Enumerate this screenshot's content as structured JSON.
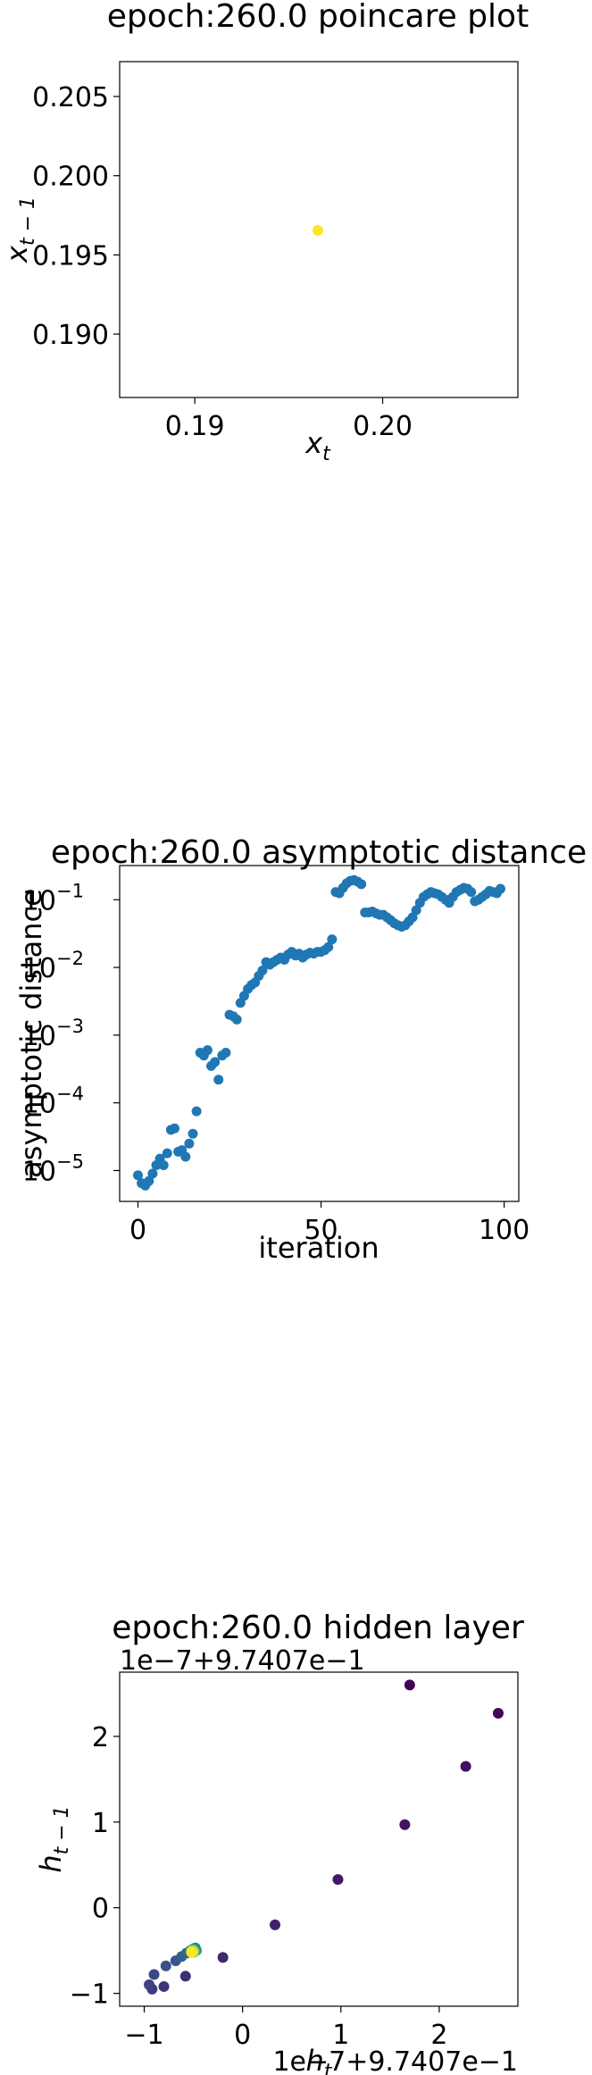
{
  "chart_data": [
    {
      "type": "scatter",
      "title": "epoch:260.0 poincare plot",
      "xlabel": "x",
      "xlabel_sub": "t",
      "ylabel": "x",
      "ylabel_sub": "t − 1",
      "xlim": [
        0.186,
        0.2072
      ],
      "ylim": [
        0.186,
        0.2072
      ],
      "xticks": [
        0.19,
        0.2
      ],
      "xtick_labels": [
        "0.19",
        "0.20"
      ],
      "yticks": [
        0.19,
        0.195,
        0.2,
        0.205
      ],
      "ytick_labels": [
        "0.190",
        "0.195",
        "0.200",
        "0.205"
      ],
      "grid": false,
      "marker_color": "#fde725",
      "points": [
        {
          "x": 0.19655,
          "y": 0.19655
        }
      ]
    },
    {
      "type": "scatter",
      "title": "epoch:260.0 asymptotic distance",
      "xlabel": "iteration",
      "ylabel": "asymptotic distance",
      "yscale": "log",
      "xlim": [
        -5,
        104
      ],
      "ylim": [
        3.5e-06,
        0.32
      ],
      "xticks": [
        0,
        50,
        100
      ],
      "xtick_labels": [
        "0",
        "50",
        "100"
      ],
      "yticks": [
        1e-05,
        0.0001,
        0.001,
        0.01,
        0.1
      ],
      "ytick_labels": [
        "10",
        "10",
        "10",
        "10",
        "10"
      ],
      "ytick_exponents": [
        "−5",
        "−4",
        "−3",
        "−2",
        "−1"
      ],
      "grid": false,
      "marker_color": "#1f77b4",
      "x": [
        0,
        1,
        2,
        3,
        4,
        5,
        6,
        7,
        8,
        9,
        10,
        11,
        12,
        13,
        14,
        15,
        16,
        17,
        18,
        19,
        20,
        21,
        22,
        23,
        24,
        25,
        26,
        27,
        28,
        29,
        30,
        31,
        32,
        33,
        34,
        35,
        36,
        37,
        38,
        39,
        40,
        41,
        42,
        43,
        44,
        45,
        46,
        47,
        48,
        49,
        50,
        51,
        52,
        53,
        54,
        55,
        56,
        57,
        58,
        59,
        60,
        61,
        62,
        63,
        64,
        65,
        66,
        67,
        68,
        69,
        70,
        71,
        72,
        73,
        74,
        75,
        76,
        77,
        78,
        79,
        80,
        81,
        82,
        83,
        84,
        85,
        86,
        87,
        88,
        89,
        90,
        91,
        92,
        93,
        94,
        95,
        96,
        97,
        98,
        99
      ],
      "y": [
        8.5e-06,
        6.5e-06,
        6e-06,
        7e-06,
        9e-06,
        1.2e-05,
        1.5e-05,
        1.2e-05,
        1.8e-05,
        4e-05,
        4.2e-05,
        1.9e-05,
        2e-05,
        1.6e-05,
        2.5e-05,
        3.5e-05,
        7.5e-05,
        0.00055,
        0.0005,
        0.0006,
        0.00035,
        0.0004,
        0.00022,
        0.0005,
        0.00055,
        0.002,
        0.0019,
        0.0017,
        0.003,
        0.0038,
        0.0048,
        0.0055,
        0.006,
        0.0075,
        0.009,
        0.012,
        0.011,
        0.012,
        0.013,
        0.014,
        0.013,
        0.0155,
        0.017,
        0.015,
        0.016,
        0.014,
        0.0155,
        0.0165,
        0.016,
        0.017,
        0.017,
        0.018,
        0.02,
        0.026,
        0.13,
        0.125,
        0.15,
        0.175,
        0.19,
        0.195,
        0.185,
        0.17,
        0.065,
        0.065,
        0.067,
        0.063,
        0.06,
        0.06,
        0.055,
        0.05,
        0.045,
        0.042,
        0.04,
        0.042,
        0.048,
        0.055,
        0.07,
        0.09,
        0.11,
        0.12,
        0.13,
        0.125,
        0.12,
        0.11,
        0.1,
        0.09,
        0.11,
        0.13,
        0.14,
        0.15,
        0.145,
        0.13,
        0.095,
        0.1,
        0.11,
        0.12,
        0.135,
        0.13,
        0.125,
        0.145
      ]
    },
    {
      "type": "scatter",
      "title": "epoch:260.0 hidden layer",
      "xlabel": "h",
      "xlabel_sub": "t",
      "ylabel": "h",
      "ylabel_sub": "t − 1",
      "x_offset_label": "1e−7+9.7407e−1",
      "y_offset_label": "1e−7+9.7407e−1",
      "xlim": [
        -1.25,
        2.8
      ],
      "ylim": [
        -1.15,
        2.75
      ],
      "xticks": [
        -1,
        0,
        1,
        2
      ],
      "xtick_labels": [
        "−1",
        "0",
        "1",
        "2"
      ],
      "yticks": [
        -1,
        0,
        1,
        2
      ],
      "ytick_labels": [
        "−1",
        "0",
        "1",
        "2"
      ],
      "grid": false,
      "colormap": "viridis",
      "points": [
        {
          "x": 1.7,
          "y": 2.6,
          "c": 0.0
        },
        {
          "x": 2.6,
          "y": 2.27,
          "c": 0.02
        },
        {
          "x": 2.27,
          "y": 1.65,
          "c": 0.04
        },
        {
          "x": 1.65,
          "y": 0.97,
          "c": 0.06
        },
        {
          "x": 0.97,
          "y": 0.33,
          "c": 0.08
        },
        {
          "x": 0.33,
          "y": -0.2,
          "c": 0.1
        },
        {
          "x": -0.2,
          "y": -0.58,
          "c": 0.12
        },
        {
          "x": -0.58,
          "y": -0.8,
          "c": 0.14
        },
        {
          "x": -0.8,
          "y": -0.92,
          "c": 0.16
        },
        {
          "x": -0.92,
          "y": -0.95,
          "c": 0.18
        },
        {
          "x": -0.95,
          "y": -0.9,
          "c": 0.2
        },
        {
          "x": -0.9,
          "y": -0.78,
          "c": 0.22
        },
        {
          "x": -0.78,
          "y": -0.68,
          "c": 0.24
        },
        {
          "x": -0.68,
          "y": -0.62,
          "c": 0.26
        },
        {
          "x": -0.62,
          "y": -0.57,
          "c": 0.3
        },
        {
          "x": -0.57,
          "y": -0.53,
          "c": 0.34
        },
        {
          "x": -0.53,
          "y": -0.5,
          "c": 0.38
        },
        {
          "x": -0.5,
          "y": -0.48,
          "c": 0.42
        },
        {
          "x": -0.48,
          "y": -0.47,
          "c": 0.46
        },
        {
          "x": -0.47,
          "y": -0.5,
          "c": 0.5
        },
        {
          "x": -0.5,
          "y": -0.52,
          "c": 0.55
        },
        {
          "x": -0.52,
          "y": -0.5,
          "c": 0.6
        },
        {
          "x": -0.5,
          "y": -0.49,
          "c": 0.65
        },
        {
          "x": -0.49,
          "y": -0.51,
          "c": 0.7
        },
        {
          "x": -0.51,
          "y": -0.52,
          "c": 0.75
        },
        {
          "x": -0.52,
          "y": -0.51,
          "c": 0.8
        },
        {
          "x": -0.51,
          "y": -0.5,
          "c": 0.85
        },
        {
          "x": -0.5,
          "y": -0.51,
          "c": 0.9
        },
        {
          "x": -0.51,
          "y": -0.52,
          "c": 0.95
        },
        {
          "x": -0.52,
          "y": -0.52,
          "c": 1.0
        }
      ]
    }
  ]
}
